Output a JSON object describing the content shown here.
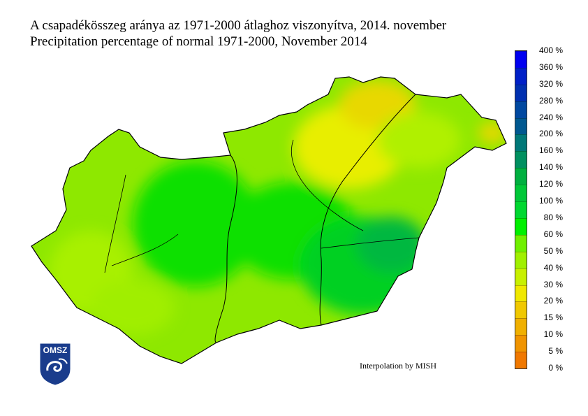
{
  "title_hu": "A csapadékösszeg aránya az 1971-2000 átlaghoz viszonyítva, 2014. november",
  "title_en": "Precipitation percentage of normal 1971-2000, November 2014",
  "credit": "Interpolation by MISH",
  "logo_text": "OMSZ",
  "legend": {
    "labels": [
      "0 %",
      "5 %",
      "10 %",
      "15 %",
      "20 %",
      "30 %",
      "40 %",
      "50 %",
      "60 %",
      "80 %",
      "100 %",
      "120 %",
      "140 %",
      "160 %",
      "200 %",
      "240 %",
      "280 %",
      "320 %",
      "360 %",
      "400 %"
    ],
    "colors": [
      "#f07800",
      "#f09400",
      "#f0b000",
      "#f0c800",
      "#f0e800",
      "#c8f000",
      "#a0f000",
      "#70f000",
      "#00f000",
      "#00d830",
      "#00c838",
      "#00b040",
      "#009060",
      "#007878",
      "#005890",
      "#0048a0",
      "#0030b0",
      "#0020c8",
      "#0000f0"
    ]
  }
}
